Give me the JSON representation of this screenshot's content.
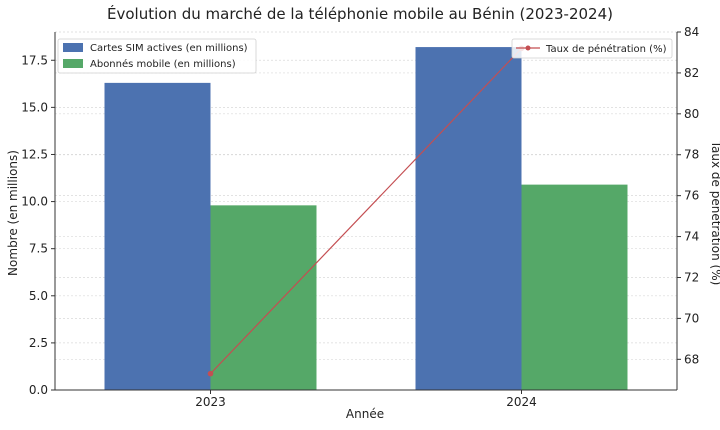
{
  "chart_data": {
    "type": "bar",
    "title": "Évolution du marché de la téléphonie mobile au Bénin (2023-2024)",
    "xlabel": "Année",
    "ylabel": "Nombre (en millions)",
    "y2label": "Taux de pénétration (%)",
    "categories": [
      "2023",
      "2024"
    ],
    "ylim": [
      0,
      19
    ],
    "y2lim": [
      66.5,
      84
    ],
    "yticks": [
      0.0,
      2.5,
      5.0,
      7.5,
      10.0,
      12.5,
      15.0,
      17.5
    ],
    "ytick_labels": [
      "0.0",
      "2.5",
      "5.0",
      "7.5",
      "10.0",
      "12.5",
      "15.0",
      "17.5"
    ],
    "y2ticks": [
      68,
      70,
      72,
      74,
      76,
      78,
      80,
      82,
      84
    ],
    "y2tick_labels": [
      "68",
      "70",
      "72",
      "74",
      "76",
      "78",
      "80",
      "82",
      "84"
    ],
    "series": [
      {
        "name": "Cartes SIM actives (en millions)",
        "kind": "bar",
        "axis": "left",
        "color": "#4c72b0",
        "values": [
          16.3,
          18.2
        ]
      },
      {
        "name": "Abonnés mobile (en millions)",
        "kind": "bar",
        "axis": "left",
        "color": "#55a868",
        "values": [
          9.8,
          10.9
        ]
      },
      {
        "name": "Taux de pénétration (%)",
        "kind": "line",
        "axis": "right",
        "color": "#c44e52",
        "values": [
          67.3,
          83.2
        ]
      }
    ],
    "grid": true,
    "legend_left": "top-left",
    "legend_right": "top-right"
  }
}
